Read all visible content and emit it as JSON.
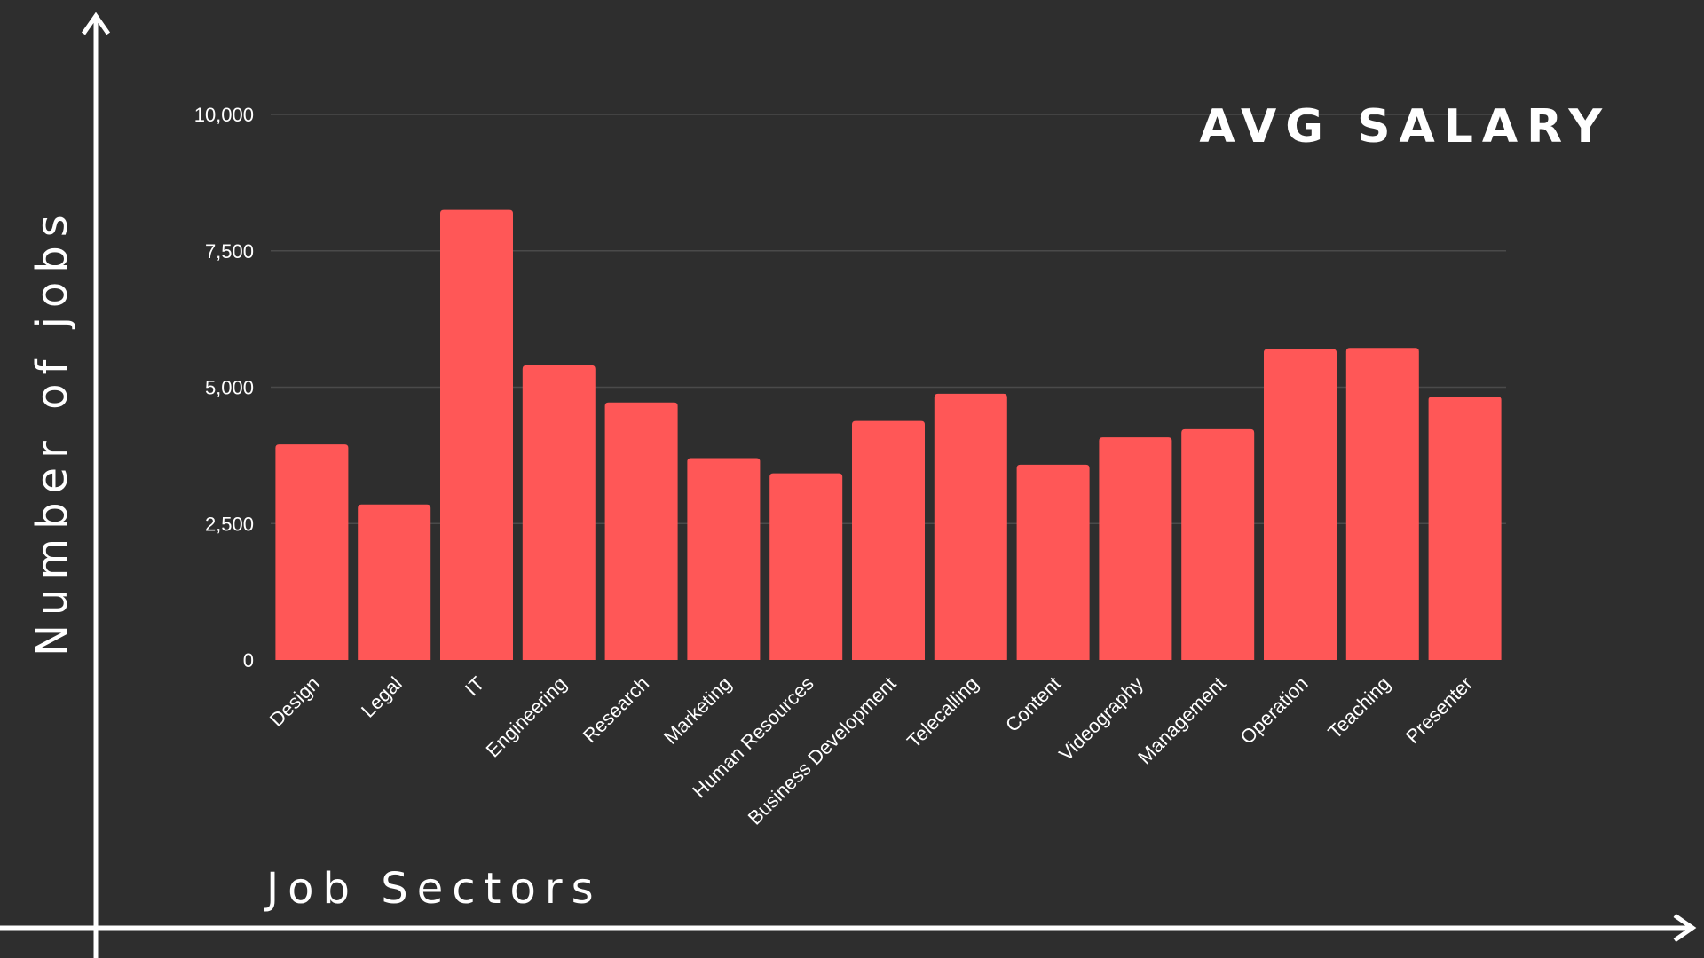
{
  "colors": {
    "background": "#2e2e2e",
    "bar": "#ff5757",
    "grid": "#4a4a4a",
    "text": "#ffffff"
  },
  "chart_data": {
    "type": "bar",
    "title": "AVG SALARY",
    "xlabel": "Job Sectors",
    "ylabel": "Number of jobs",
    "ylim": [
      0,
      10000
    ],
    "yticks": [
      "0",
      "2,500",
      "5,000",
      "7,500",
      "10,000"
    ],
    "ytick_values": [
      0,
      2500,
      5000,
      7500,
      10000
    ],
    "grid": true,
    "categories": [
      "Design",
      "Legal",
      "IT",
      "Engineering",
      "Research",
      "Marketing",
      "Human Resources",
      "Business Development",
      "Telecalling",
      "Content",
      "Videography",
      "Management",
      "Operation",
      "Teaching",
      "Presenter"
    ],
    "values": [
      3950,
      2850,
      8250,
      5400,
      4720,
      3700,
      3420,
      4380,
      4880,
      3580,
      4080,
      4230,
      5700,
      5720,
      4830
    ]
  }
}
